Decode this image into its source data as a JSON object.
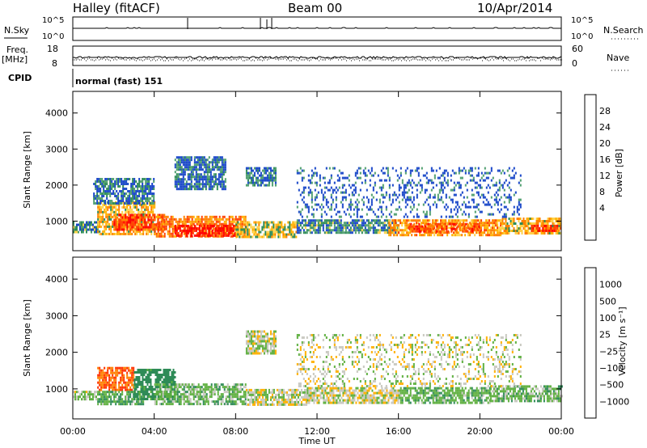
{
  "header": {
    "station": "Halley (fitACF)",
    "beam": "Beam 00",
    "date": "10/Apr/2014"
  },
  "strips": {
    "nsky_label": "N.Sky",
    "nsearch_label": "N.Search",
    "nsky_ticks": [
      "10^5",
      "10^0"
    ],
    "freq_label_1": "Freq.",
    "freq_label_2": "[MHz]",
    "freq_ticks": [
      "18",
      "8"
    ],
    "nave_label": "Nave",
    "nave_ticks": [
      "60",
      "0"
    ],
    "cpid_label": "CPID",
    "cpid_text": "normal (fast) 151"
  },
  "chart_data": [
    {
      "type": "heatmap",
      "name": "power",
      "ylabel": "Slant Range [km]",
      "xlabel": "Time UT",
      "x_ticks": [
        "00:00",
        "04:00",
        "08:00",
        "12:00",
        "16:00",
        "20:00",
        "00:00"
      ],
      "x_hours": [
        0,
        4,
        8,
        12,
        16,
        20,
        24
      ],
      "y_ticks": [
        1000,
        2000,
        3000,
        4000
      ],
      "ylim": [
        180,
        4600
      ],
      "xlim_hours": [
        0,
        24
      ],
      "colorbar": {
        "label": "Power [dB]",
        "ticks": [
          "28",
          "24",
          "20",
          "16",
          "12",
          "8",
          "4"
        ],
        "colors": [
          "#ff0000",
          "#ff4000",
          "#ff8000",
          "#ffb000",
          "#ffd24a",
          "#2e8b57",
          "#4f9f6f",
          "#1846c8",
          "#0030ff"
        ]
      },
      "echo_regions": [
        {
          "t0": 0.0,
          "t1": 1.2,
          "r0": 700,
          "r1": 1000,
          "level": 8
        },
        {
          "t0": 1.2,
          "t1": 4.0,
          "r0": 650,
          "r1": 1550,
          "level": 16
        },
        {
          "t0": 2.0,
          "t1": 4.5,
          "r0": 750,
          "r1": 1200,
          "level": 24
        },
        {
          "t0": 4.0,
          "t1": 8.5,
          "r0": 600,
          "r1": 1150,
          "level": 20
        },
        {
          "t0": 5.0,
          "t1": 8.0,
          "r0": 600,
          "r1": 900,
          "level": 28
        },
        {
          "t0": 8.0,
          "t1": 11.0,
          "r0": 550,
          "r1": 1000,
          "level": 14
        },
        {
          "t0": 11.0,
          "t1": 16.0,
          "r0": 650,
          "r1": 1050,
          "level": 8
        },
        {
          "t0": 15.5,
          "t1": 21.0,
          "r0": 600,
          "r1": 1050,
          "level": 18
        },
        {
          "t0": 16.5,
          "t1": 20.0,
          "r0": 700,
          "r1": 950,
          "level": 24
        },
        {
          "t0": 21.0,
          "t1": 24.0,
          "r0": 650,
          "r1": 1100,
          "level": 16
        },
        {
          "t0": 22.5,
          "t1": 24.0,
          "r0": 700,
          "r1": 900,
          "level": 24
        },
        {
          "t0": 5.0,
          "t1": 7.5,
          "r0": 1900,
          "r1": 2800,
          "level": 6
        },
        {
          "t0": 8.5,
          "t1": 10.0,
          "r0": 2000,
          "r1": 2500,
          "level": 6
        },
        {
          "t0": 1.0,
          "t1": 4.0,
          "r0": 1500,
          "r1": 2200,
          "level": 6
        },
        {
          "t0": 11.0,
          "t1": 22.0,
          "r0": 1100,
          "r1": 2500,
          "level": 4
        }
      ]
    },
    {
      "type": "heatmap",
      "name": "velocity",
      "ylabel": "Slant Range [km]",
      "xlabel": "Time UT",
      "x_ticks": [
        "00:00",
        "04:00",
        "08:00",
        "12:00",
        "16:00",
        "20:00",
        "00:00"
      ],
      "x_hours": [
        0,
        4,
        8,
        12,
        16,
        20,
        24
      ],
      "y_ticks": [
        1000,
        2000,
        3000,
        4000
      ],
      "ylim": [
        180,
        4600
      ],
      "xlim_hours": [
        0,
        24
      ],
      "colorbar": {
        "label": "Velocity [m s⁻¹]",
        "ticks": [
          "1000",
          "500",
          "100",
          "25",
          "−25",
          "−100",
          "−500",
          "−1000"
        ],
        "colors": [
          "#1a3fd6",
          "#2a56b8",
          "#2e8b57",
          "#5fb040",
          "#c8c8c0",
          "#ffb000",
          "#ff8000",
          "#ff3000",
          "#ff0000"
        ]
      },
      "echo_regions": [
        {
          "t0": 0.0,
          "t1": 1.2,
          "r0": 750,
          "r1": 950,
          "v": 25
        },
        {
          "t0": 1.2,
          "t1": 3.0,
          "r0": 950,
          "r1": 1600,
          "v": -400
        },
        {
          "t0": 1.2,
          "t1": 3.5,
          "r0": 600,
          "r1": 950,
          "v": 80
        },
        {
          "t0": 3.0,
          "t1": 5.0,
          "r0": 750,
          "r1": 1550,
          "v": 150
        },
        {
          "t0": 4.0,
          "t1": 8.5,
          "r0": 600,
          "r1": 1150,
          "v": 60
        },
        {
          "t0": 8.5,
          "t1": 11.5,
          "r0": 550,
          "r1": 1000,
          "v": 5
        },
        {
          "t0": 11.5,
          "t1": 16.0,
          "r0": 600,
          "r1": 1050,
          "v": 0
        },
        {
          "t0": 16.0,
          "t1": 20.5,
          "r0": 600,
          "r1": 1050,
          "v": 70
        },
        {
          "t0": 20.5,
          "t1": 24.0,
          "r0": 650,
          "r1": 1100,
          "v": 60
        },
        {
          "t0": 8.5,
          "t1": 10.0,
          "r0": 2000,
          "r1": 2600,
          "v": 0
        },
        {
          "t0": 11.0,
          "t1": 22.0,
          "r0": 1100,
          "r1": 2500,
          "v": 0
        }
      ]
    }
  ]
}
